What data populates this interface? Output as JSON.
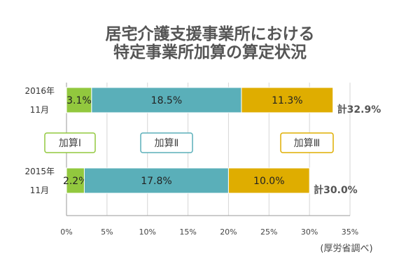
{
  "page": {
    "title_line1": "居宅介護支援事業所における",
    "title_line2": "特定事業所加算の算定状況",
    "source": "(厚労省調べ)"
  },
  "chart_data": {
    "type": "bar",
    "orientation": "horizontal",
    "stacked": true,
    "title": "居宅介護支援事業所における特定事業所加算の算定状況",
    "categories": [
      {
        "label_line1": "2016年",
        "label_line2": "11月",
        "total_label": "計32.9%"
      },
      {
        "label_line1": "2015年",
        "label_line2": "11月",
        "total_label": "計30.0%"
      }
    ],
    "series": [
      {
        "name": "加算Ⅰ",
        "color": "#92c83e",
        "values": [
          3.1,
          2.2
        ],
        "labels": [
          "3.1%",
          "2.2%"
        ]
      },
      {
        "name": "加算Ⅱ",
        "color": "#5aafb9",
        "values": [
          18.5,
          17.8
        ],
        "labels": [
          "18.5%",
          "17.8%"
        ]
      },
      {
        "name": "加算Ⅲ",
        "color": "#dfad00",
        "values": [
          11.3,
          10.0
        ],
        "labels": [
          "11.3%",
          "10.0%"
        ]
      }
    ],
    "xlim": [
      0,
      35
    ],
    "x_ticks": [
      0,
      5,
      10,
      15,
      20,
      25,
      30,
      35
    ],
    "x_tick_labels": [
      "0%",
      "5%",
      "10%",
      "15%",
      "20%",
      "25%",
      "30%",
      "35%"
    ],
    "grid": true,
    "legend_position": "between bars",
    "source": "(厚労省調べ)"
  }
}
